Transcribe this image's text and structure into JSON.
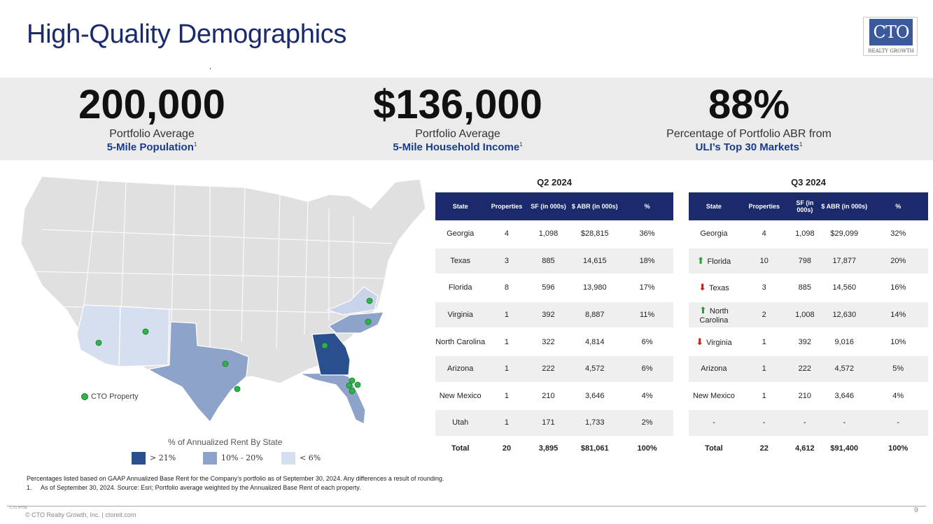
{
  "title": "High-Quality Demographics",
  "logo": {
    "text": "CTO",
    "subtext": "REALTY GROWTH"
  },
  "stats": [
    {
      "value": "200,000",
      "line1": "Portfolio Average",
      "line2": "5-Mile Population",
      "sup": "1"
    },
    {
      "value": "$136,000",
      "line1": "Portfolio Average",
      "line2": "5-Mile Household Income",
      "sup": "1"
    },
    {
      "value": "88%",
      "line1": "Percentage of Portfolio ABR from",
      "line2": "ULI’s Top 30 Markets",
      "sup": "1"
    }
  ],
  "map": {
    "legend_marker": "CTO Property",
    "legend_title": "% of Annualized Rent By State",
    "legend": [
      {
        "label": "> 21%",
        "color": "#2a4f8f"
      },
      {
        "label": "10% - 20%",
        "color": "#8ea3c9"
      },
      {
        "label": "< 6%",
        "color": "#d6dff0"
      }
    ],
    "base_color": "#e0e0e0",
    "marker_color": "#2db34a"
  },
  "q2": {
    "heading": "Q2 2024",
    "columns": [
      "State",
      "Properties",
      "SF (in 000s)",
      "$ ABR (in 000s)",
      "%"
    ],
    "rows": [
      [
        "Georgia",
        "4",
        "1,098",
        "$28,815",
        "36%"
      ],
      [
        "Texas",
        "3",
        "885",
        "14,615",
        "18%"
      ],
      [
        "Florida",
        "8",
        "596",
        "13,980",
        "17%"
      ],
      [
        "Virginia",
        "1",
        "392",
        "8,887",
        "11%"
      ],
      [
        "North Carolina",
        "1",
        "322",
        "4,814",
        "6%"
      ],
      [
        "Arizona",
        "1",
        "222",
        "4,572",
        "6%"
      ],
      [
        "New Mexico",
        "1",
        "210",
        "3,646",
        "4%"
      ],
      [
        "Utah",
        "1",
        "171",
        "1,733",
        "2%"
      ]
    ],
    "total": [
      "Total",
      "20",
      "3,895",
      "$81,061",
      "100%"
    ]
  },
  "q3": {
    "heading": "Q3 2024",
    "columns": [
      "State",
      "Properties",
      "SF (in 000s)",
      "$ ABR (in 000s)",
      "%"
    ],
    "rows": [
      [
        "Georgia",
        "4",
        "1,098",
        "$29,099",
        "32%"
      ],
      [
        "Florida",
        "10",
        "798",
        "17,877",
        "20%"
      ],
      [
        "Texas",
        "3",
        "885",
        "14,560",
        "16%"
      ],
      [
        "North Carolina",
        "2",
        "1,008",
        "12,630",
        "14%"
      ],
      [
        "Virginia",
        "1",
        "392",
        "9,016",
        "10%"
      ],
      [
        "Arizona",
        "1",
        "222",
        "4,572",
        "5%"
      ],
      [
        "New Mexico",
        "1",
        "210",
        "3,646",
        "4%"
      ],
      [
        "-",
        "-",
        "-",
        "-",
        "-"
      ]
    ],
    "arrows": [
      "",
      "up",
      "down",
      "up",
      "down",
      "",
      "",
      ""
    ],
    "total": [
      "Total",
      "22",
      "4,612",
      "$91,400",
      "100%"
    ]
  },
  "notes": [
    "Percentages listed based on GAAP Annualized Base Rent for the Company’s portfolio as of September 30, 2024. Any differences a result of rounding.",
    "1.     As of September 30, 2024. Source: Esri; Portfolio average weighted by the Annualized Base Rent of each property."
  ],
  "footer": {
    "text": "© CTO Realty Growth, Inc. | ctoreit.com",
    "mini_logo": "CTO NYSE",
    "page": "9"
  }
}
